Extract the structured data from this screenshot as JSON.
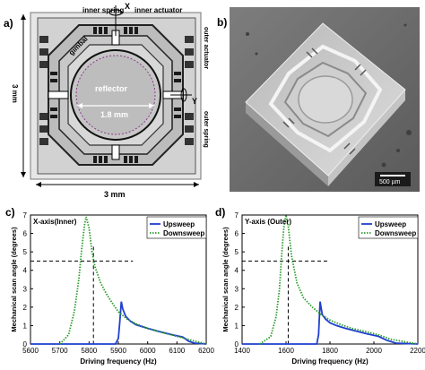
{
  "panels": {
    "a": {
      "label": "a)",
      "annotations": {
        "inner_spring": "inner spring",
        "x_axis": "X",
        "inner_actuator": "inner actuator",
        "gimbal": "gimbal",
        "outer_actuator": "outer actuator",
        "reflector": "reflector",
        "reflector_size": "1.8 mm",
        "y_axis": "Y",
        "outer_spring": "outer spring",
        "height_dim": "3 mm",
        "width_dim": "3 mm"
      }
    },
    "b": {
      "label": "b)",
      "scale_bar": "500 µm"
    },
    "c": {
      "label": "c)"
    },
    "d": {
      "label": "d)"
    }
  },
  "chart_data": [
    {
      "type": "line",
      "title": "X-axis(Inner)",
      "xlabel": "Driving frequency (Hz)",
      "ylabel": "Mechanical scan angle (degrees)",
      "xlim": [
        5600,
        6200
      ],
      "ylim": [
        0,
        7
      ],
      "xticks": [
        5600,
        5700,
        5800,
        5900,
        6000,
        6100,
        6200
      ],
      "yticks": [
        0,
        1,
        2,
        3,
        4,
        5,
        6,
        7
      ],
      "legend": "top-right",
      "series": [
        {
          "name": "Upsweep",
          "color": "#1f3fcf",
          "style": "solid",
          "x": [
            5600,
            5700,
            5780,
            5850,
            5890,
            5900,
            5905,
            5910,
            5915,
            5925,
            5940,
            5960,
            5980,
            6000,
            6030,
            6060,
            6090,
            6120,
            6140,
            6160,
            6200
          ],
          "y": [
            0,
            0,
            0,
            0,
            0,
            0.3,
            1.2,
            2.3,
            1.9,
            1.5,
            1.25,
            1.05,
            0.95,
            0.85,
            0.72,
            0.6,
            0.48,
            0.38,
            0.15,
            0.05,
            0
          ]
        },
        {
          "name": "Downsweep",
          "color": "#2e9a2e",
          "style": "dotted",
          "x": [
            5700,
            5730,
            5750,
            5765,
            5775,
            5785,
            5790,
            5800,
            5810,
            5820,
            5840,
            5860,
            5880,
            5900,
            5930,
            5960,
            6000,
            6050,
            6100,
            6140,
            6200
          ],
          "y": [
            0,
            0.5,
            1.8,
            3.5,
            5.2,
            6.5,
            6.9,
            6.3,
            5.0,
            4.2,
            3.3,
            2.7,
            2.2,
            1.75,
            1.35,
            1.1,
            0.85,
            0.62,
            0.42,
            0.25,
            0
          ]
        }
      ],
      "guides": {
        "hline_y": 4.5,
        "vline_x": 5815
      }
    },
    {
      "type": "line",
      "title": "Y-axis (Outer)",
      "xlabel": "Driving frequency (Hz)",
      "ylabel": "Mechanical scan angle (degrees)",
      "xlim": [
        1400,
        2200
      ],
      "ylim": [
        0,
        7
      ],
      "xticks": [
        1400,
        1600,
        1800,
        2000,
        2200
      ],
      "yticks": [
        0,
        1,
        2,
        3,
        4,
        5,
        6,
        7
      ],
      "legend": "top-right",
      "series": [
        {
          "name": "Upsweep",
          "color": "#1f3fcf",
          "style": "solid",
          "x": [
            1400,
            1500,
            1600,
            1700,
            1740,
            1748,
            1755,
            1765,
            1780,
            1800,
            1830,
            1870,
            1920,
            1970,
            2020,
            2060,
            2100,
            2200
          ],
          "y": [
            0,
            0,
            0,
            0,
            0,
            0.5,
            2.3,
            1.6,
            1.35,
            1.15,
            1.0,
            0.85,
            0.7,
            0.55,
            0.42,
            0.2,
            0.05,
            0
          ]
        },
        {
          "name": "Downsweep",
          "color": "#2e9a2e",
          "style": "dotted",
          "x": [
            1480,
            1530,
            1555,
            1570,
            1580,
            1590,
            1600,
            1610,
            1625,
            1650,
            1680,
            1720,
            1760,
            1800,
            1850,
            1900,
            1960,
            2020,
            2080,
            2200
          ],
          "y": [
            0,
            0.4,
            1.5,
            3.0,
            4.8,
            6.3,
            7.0,
            6.4,
            4.8,
            3.3,
            2.5,
            2.0,
            1.6,
            1.3,
            1.05,
            0.85,
            0.68,
            0.5,
            0.25,
            0
          ]
        }
      ],
      "guides": {
        "hline_y": 4.5,
        "vline_x": 1610
      }
    }
  ]
}
